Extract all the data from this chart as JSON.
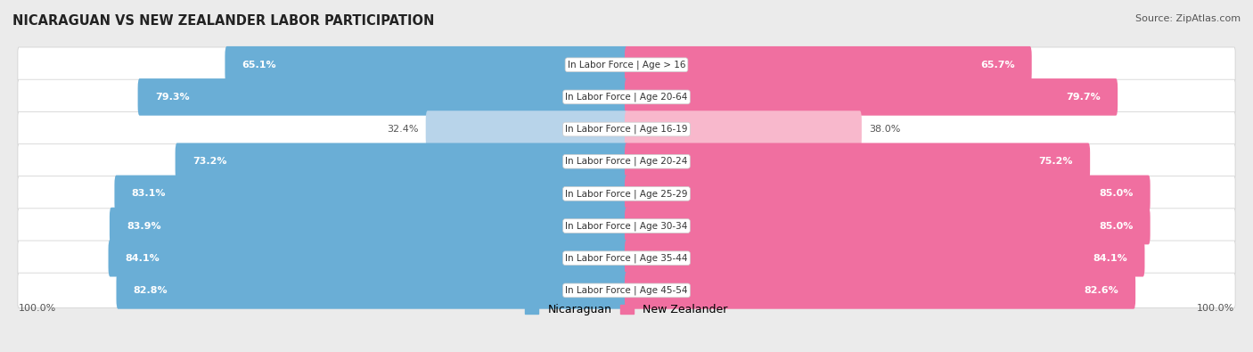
{
  "title": "NICARAGUAN VS NEW ZEALANDER LABOR PARTICIPATION",
  "source": "Source: ZipAtlas.com",
  "categories": [
    "In Labor Force | Age > 16",
    "In Labor Force | Age 20-64",
    "In Labor Force | Age 16-19",
    "In Labor Force | Age 20-24",
    "In Labor Force | Age 25-29",
    "In Labor Force | Age 30-34",
    "In Labor Force | Age 35-44",
    "In Labor Force | Age 45-54"
  ],
  "nicaraguan": [
    65.1,
    79.3,
    32.4,
    73.2,
    83.1,
    83.9,
    84.1,
    82.8
  ],
  "new_zealander": [
    65.7,
    79.7,
    38.0,
    75.2,
    85.0,
    85.0,
    84.1,
    82.6
  ],
  "blue_strong": "#6aaed6",
  "blue_light": "#b8d4ea",
  "pink_strong": "#f06fa0",
  "pink_light": "#f8b8cc",
  "bg_color": "#ebebeb",
  "row_bg": "#e0e0e0",
  "legend_blue": "#6aaed6",
  "legend_pink": "#f06fa0"
}
